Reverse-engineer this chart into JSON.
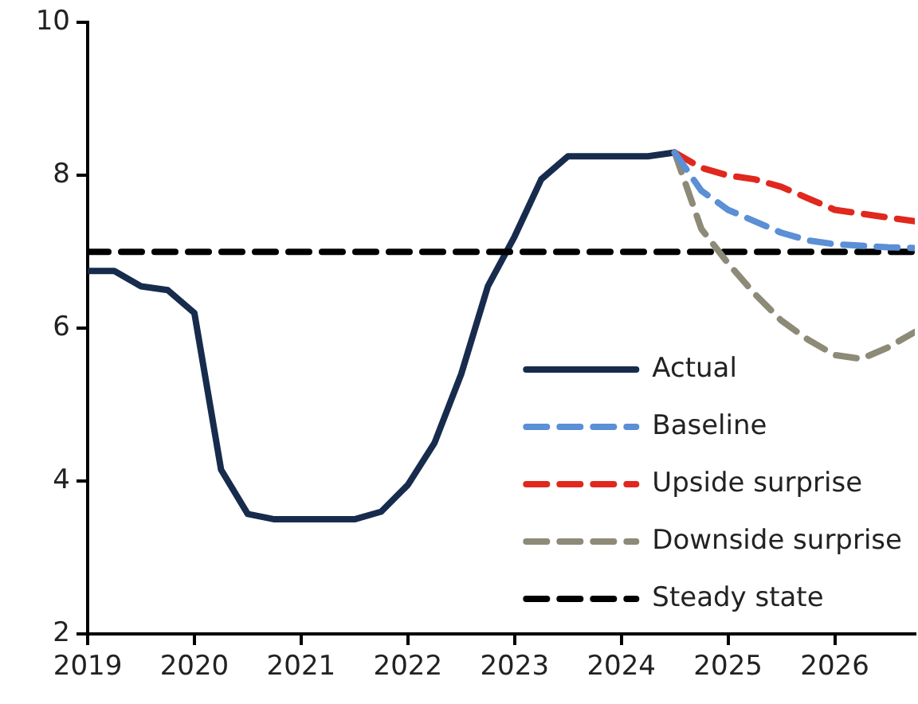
{
  "chart_data": {
    "type": "line",
    "xlim": [
      2019,
      2026.75
    ],
    "xticks": [
      2019,
      2020,
      2021,
      2022,
      2023,
      2024,
      2025,
      2026
    ],
    "ylim": [
      2,
      10
    ],
    "yticks": [
      2,
      4,
      6,
      8,
      10
    ],
    "grid": false,
    "legend": "bottom right",
    "marker": "none",
    "series": [
      {
        "name": "Actual",
        "color": "#172b4d",
        "line_style": "solid",
        "x": [
          2019,
          2019.25,
          2019.5,
          2019.75,
          2020,
          2020.25,
          2020.5,
          2020.75,
          2021,
          2021.25,
          2021.5,
          2021.75,
          2022,
          2022.25,
          2022.5,
          2022.75,
          2023,
          2023.25,
          2023.5,
          2023.75,
          2024,
          2024.25,
          2024.5
        ],
        "values": [
          6.75,
          6.75,
          6.55,
          6.5,
          6.2,
          4.15,
          3.57,
          3.5,
          3.5,
          3.5,
          3.5,
          3.6,
          3.95,
          4.5,
          5.4,
          6.55,
          7.2,
          7.95,
          8.25,
          8.25,
          8.25,
          8.25,
          8.3
        ]
      },
      {
        "name": "Baseline",
        "color": "#5b8fd6",
        "line_style": "dashed",
        "x": [
          2024.5,
          2024.75,
          2025,
          2025.25,
          2025.5,
          2025.75,
          2026,
          2026.25,
          2026.5,
          2026.75
        ],
        "values": [
          8.3,
          7.8,
          7.55,
          7.4,
          7.25,
          7.15,
          7.1,
          7.08,
          7.06,
          7.05
        ]
      },
      {
        "name": "Upside surprise",
        "color": "#e0281e",
        "line_style": "dashed",
        "x": [
          2024.5,
          2024.75,
          2025,
          2025.25,
          2025.5,
          2025.75,
          2026,
          2026.25,
          2026.5,
          2026.75
        ],
        "values": [
          8.3,
          8.1,
          8.0,
          7.95,
          7.85,
          7.7,
          7.55,
          7.5,
          7.45,
          7.4
        ]
      },
      {
        "name": "Downside surprise",
        "color": "#8e8a78",
        "line_style": "dashed",
        "x": [
          2024.5,
          2024.75,
          2025,
          2025.25,
          2025.5,
          2025.75,
          2026,
          2026.25,
          2026.5,
          2026.75
        ],
        "values": [
          8.3,
          7.3,
          6.85,
          6.45,
          6.1,
          5.85,
          5.65,
          5.6,
          5.75,
          5.95
        ]
      },
      {
        "name": "Steady state",
        "color": "#000000",
        "line_style": "dashed",
        "x": [
          2019,
          2026.75
        ],
        "values": [
          7,
          7
        ]
      }
    ]
  }
}
